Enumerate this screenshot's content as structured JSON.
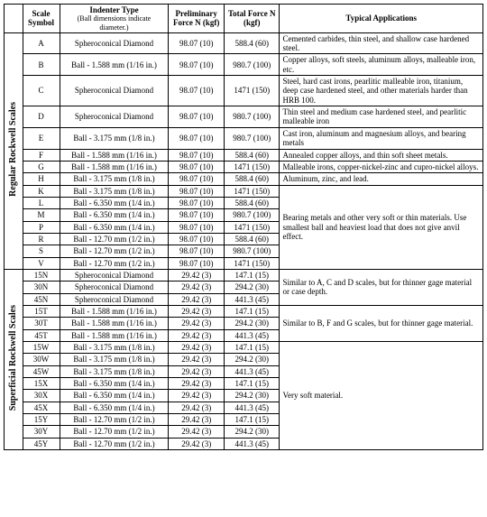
{
  "headers": {
    "scale_symbol": "Scale Symbol",
    "indenter_type": "Indenter Type",
    "indenter_sub": "(Ball dimensions indicate diameter.)",
    "prelim_force": "Preliminary Force N (kgf)",
    "total_force": "Total Force N (kgf)",
    "typical_apps": "Typical Applications"
  },
  "group_labels": {
    "regular": "Regular Rockwell Scales",
    "superficial": "Superficial Rockwell Scales"
  },
  "regular": [
    {
      "sym": "A",
      "ind": "Spheroconical Diamond",
      "pf": "98.07 (10)",
      "tf": "588.4 (60)",
      "app": "Cemented carbides, thin steel, and shallow case hardened steel."
    },
    {
      "sym": "B",
      "ind": "Ball - 1.588 mm (1/16 in.)",
      "pf": "98.07 (10)",
      "tf": "980.7 (100)",
      "app": "Copper alloys, soft steels, aluminum alloys, malleable iron, etc."
    },
    {
      "sym": "C",
      "ind": "Spheroconical Diamond",
      "pf": "98.07 (10)",
      "tf": "1471 (150)",
      "app": "Steel, hard cast irons, pearlitic malleable iron, titanium, deep case hardened steel, and other materials harder than HRB 100."
    },
    {
      "sym": "D",
      "ind": "Spheroconical Diamond",
      "pf": "98.07 (10)",
      "tf": "980.7 (100)",
      "app": "Thin steel and medium case hardened steel, and pearlitic malleable iron"
    },
    {
      "sym": "E",
      "ind": "Ball - 3.175 mm (1/8 in.)",
      "pf": "98.07 (10)",
      "tf": "980.7 (100)",
      "app": "Cast iron, aluminum and magnesium alloys, and bearing metals"
    },
    {
      "sym": "F",
      "ind": "Ball - 1.588 mm (1/16 in.)",
      "pf": "98.07 (10)",
      "tf": "588.4 (60)",
      "app": "Annealed copper alloys, and thin soft sheet metals."
    },
    {
      "sym": "G",
      "ind": "Ball - 1.588 mm (1/16 in.)",
      "pf": "98.07 (10)",
      "tf": "1471 (150)",
      "app": "Malleable irons, copper-nickel-zinc and cupro-nickel alloys."
    },
    {
      "sym": "H",
      "ind": "Ball - 3.175 mm (1/8 in.)",
      "pf": "98.07 (10)",
      "tf": "588.4 (60)",
      "app": "Aluminum, zinc, and lead."
    },
    {
      "sym": "K",
      "ind": "Ball - 3.175 mm (1/8 in.)",
      "pf": "98.07 (10)",
      "tf": "1471 (150)"
    },
    {
      "sym": "L",
      "ind": "Ball - 6.350 mm (1/4 in.)",
      "pf": "98.07 (10)",
      "tf": "588.4 (60)"
    },
    {
      "sym": "M",
      "ind": "Ball - 6.350 mm (1/4 in.)",
      "pf": "98.07 (10)",
      "tf": "980.7 (100)"
    },
    {
      "sym": "P",
      "ind": "Ball - 6.350 mm (1/4 in.)",
      "pf": "98.07 (10)",
      "tf": "1471 (150)"
    },
    {
      "sym": "R",
      "ind": "Ball - 12.70 mm (1/2 in.)",
      "pf": "98.07 (10)",
      "tf": "588.4 (60)"
    },
    {
      "sym": "S",
      "ind": "Ball - 12.70 mm (1/2 in.)",
      "pf": "98.07 (10)",
      "tf": "980.7 (100)"
    },
    {
      "sym": "V",
      "ind": "Ball - 12.70 mm (1/2 in.)",
      "pf": "98.07 (10)",
      "tf": "1471 (150)"
    }
  ],
  "regular_merged_app": "Bearing metals and other very soft or thin materials. Use smallest ball and heaviest load that does not give anvil effect.",
  "superficial": [
    {
      "sym": "15N",
      "ind": "Spheroconical Diamond",
      "pf": "29.42 (3)",
      "tf": "147.1 (15)"
    },
    {
      "sym": "30N",
      "ind": "Spheroconical Diamond",
      "pf": "29.42 (3)",
      "tf": "294.2 (30)"
    },
    {
      "sym": "45N",
      "ind": "Spheroconical Diamond",
      "pf": "29.42 (3)",
      "tf": "441.3 (45)"
    },
    {
      "sym": "15T",
      "ind": "Ball - 1.588 mm (1/16 in.)",
      "pf": "29.42 (3)",
      "tf": "147.1 (15)"
    },
    {
      "sym": "30T",
      "ind": "Ball - 1.588 mm (1/16 in.)",
      "pf": "29.42 (3)",
      "tf": "294.2 (30)"
    },
    {
      "sym": "45T",
      "ind": "Ball - 1.588 mm (1/16 in.)",
      "pf": "29.42 (3)",
      "tf": "441.3 (45)"
    },
    {
      "sym": "15W",
      "ind": "Ball - 3.175 mm (1/8 in.)",
      "pf": "29.42 (3)",
      "tf": "147.1 (15)"
    },
    {
      "sym": "30W",
      "ind": "Ball - 3.175 mm (1/8 in.)",
      "pf": "29.42 (3)",
      "tf": "294.2 (30)"
    },
    {
      "sym": "45W",
      "ind": "Ball - 3.175 mm (1/8 in.)",
      "pf": "29.42 (3)",
      "tf": "441.3 (45)"
    },
    {
      "sym": "15X",
      "ind": "Ball - 6.350 mm (1/4 in.)",
      "pf": "29.42 (3)",
      "tf": "147.1 (15)"
    },
    {
      "sym": "30X",
      "ind": "Ball - 6.350 mm (1/4 in.)",
      "pf": "29.42 (3)",
      "tf": "294.2 (30)"
    },
    {
      "sym": "45X",
      "ind": "Ball - 6.350 mm (1/4 in.)",
      "pf": "29.42 (3)",
      "tf": "441.3 (45)"
    },
    {
      "sym": "15Y",
      "ind": "Ball - 12.70 mm (1/2 in.)",
      "pf": "29.42 (3)",
      "tf": "147.1 (15)"
    },
    {
      "sym": "30Y",
      "ind": "Ball - 12.70 mm (1/2 in.)",
      "pf": "29.42 (3)",
      "tf": "294.2 (30)"
    },
    {
      "sym": "45Y",
      "ind": "Ball - 12.70 mm (1/2 in.)",
      "pf": "29.42 (3)",
      "tf": "441.3 (45)"
    }
  ],
  "sup_app_1": "Similar to A, C and D scales, but for thinner gage material or case depth.",
  "sup_app_2": "Similar to B, F and G scales, but for thinner gage material.",
  "sup_app_3": "Very soft material."
}
